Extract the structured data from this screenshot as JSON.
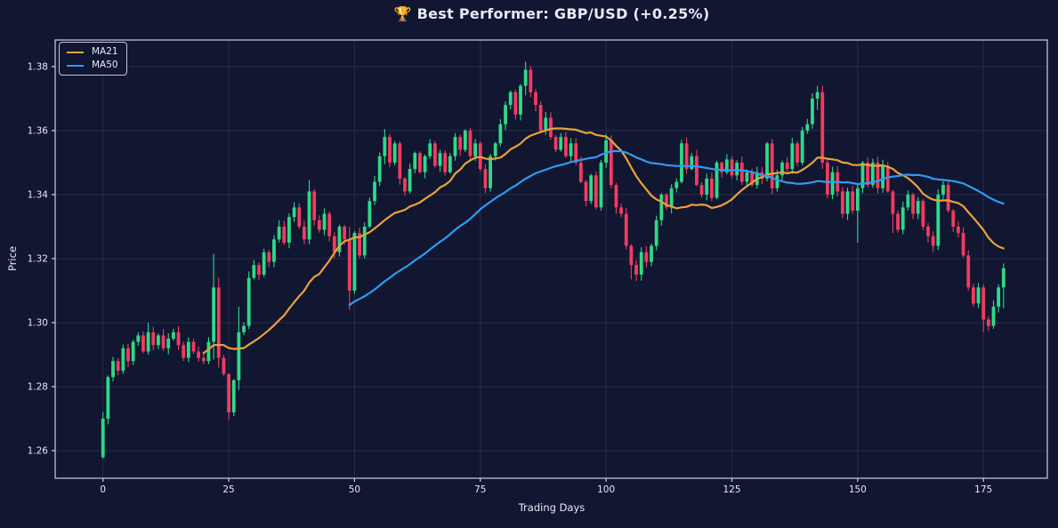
{
  "header": {
    "title": "🏆 Best Performer: GBP/USD (+0.25%)"
  },
  "legend": {
    "position": "upper left",
    "items": [
      {
        "label": "MA21",
        "color": "#e9a23b"
      },
      {
        "label": "MA50",
        "color": "#2f9bf2"
      }
    ]
  },
  "colors": {
    "background": "#111631",
    "grid": "rgba(173,181,224,0.14)",
    "spine": "#cdd1e4",
    "text": "#e8eaf6",
    "up": "#2fd987",
    "down": "#f23b5f",
    "ma21": "#e9a23b",
    "ma50": "#2f9bf2"
  },
  "chart_data": {
    "type": "candlestick",
    "title": "🏆 Best Performer: GBP/USD (+0.25%)",
    "xlabel": "Trading Days",
    "ylabel": "Price",
    "x_ticks": [
      0,
      25,
      50,
      75,
      100,
      125,
      150,
      175
    ],
    "y_ticks": [
      1.26,
      1.28,
      1.3,
      1.32,
      1.34,
      1.36,
      1.38
    ],
    "xlim": [
      -9.5,
      187.7
    ],
    "ylim": [
      1.2514,
      1.3883
    ],
    "grid": true,
    "legend_position": "upper left",
    "n_days": 180,
    "open_first": 1.258,
    "close": [
      1.27,
      1.283,
      1.288,
      1.285,
      1.292,
      1.288,
      1.294,
      1.296,
      1.291,
      1.297,
      1.293,
      1.296,
      1.292,
      1.295,
      1.297,
      1.293,
      1.289,
      1.294,
      1.291,
      1.289,
      1.288,
      1.294,
      1.311,
      1.289,
      1.284,
      1.272,
      1.282,
      1.297,
      1.299,
      1.314,
      1.318,
      1.315,
      1.322,
      1.319,
      1.326,
      1.33,
      1.325,
      1.333,
      1.336,
      1.33,
      1.326,
      1.341,
      1.332,
      1.329,
      1.334,
      1.327,
      1.322,
      1.33,
      1.326,
      1.31,
      1.328,
      1.321,
      1.33,
      1.338,
      1.344,
      1.352,
      1.358,
      1.35,
      1.356,
      1.345,
      1.341,
      1.348,
      1.353,
      1.347,
      1.352,
      1.356,
      1.349,
      1.353,
      1.347,
      1.352,
      1.358,
      1.354,
      1.36,
      1.352,
      1.356,
      1.348,
      1.342,
      1.352,
      1.356,
      1.362,
      1.368,
      1.372,
      1.365,
      1.374,
      1.379,
      1.372,
      1.368,
      1.36,
      1.364,
      1.358,
      1.354,
      1.358,
      1.352,
      1.356,
      1.35,
      1.344,
      1.338,
      1.346,
      1.336,
      1.35,
      1.357,
      1.343,
      1.336,
      1.334,
      1.324,
      1.318,
      1.315,
      1.322,
      1.319,
      1.324,
      1.332,
      1.34,
      1.336,
      1.342,
      1.344,
      1.356,
      1.348,
      1.352,
      1.343,
      1.34,
      1.345,
      1.339,
      1.35,
      1.347,
      1.351,
      1.346,
      1.35,
      1.344,
      1.347,
      1.343,
      1.347,
      1.345,
      1.356,
      1.342,
      1.346,
      1.35,
      1.348,
      1.356,
      1.35,
      1.36,
      1.362,
      1.37,
      1.372,
      1.35,
      1.34,
      1.347,
      1.341,
      1.334,
      1.341,
      1.335,
      1.342,
      1.35,
      1.343,
      1.35,
      1.342,
      1.349,
      1.341,
      1.334,
      1.329,
      1.336,
      1.34,
      1.334,
      1.338,
      1.33,
      1.327,
      1.324,
      1.34,
      1.343,
      1.335,
      1.33,
      1.328,
      1.321,
      1.311,
      1.306,
      1.311,
      1.301,
      1.299,
      1.305,
      1.311,
      1.317
    ],
    "high_low_overrides": {
      "0": [
        1.272,
        1.2575
      ],
      "9": [
        1.3,
        1.29
      ],
      "22": [
        1.3215,
        1.2885
      ],
      "23": [
        1.314,
        1.286
      ],
      "25": [
        1.284,
        1.2695
      ],
      "27": [
        1.305,
        1.279
      ],
      "41": [
        1.3445,
        1.3245
      ],
      "49": [
        1.33,
        1.304
      ],
      "56": [
        1.3605,
        1.3495
      ],
      "84": [
        1.3815,
        1.371
      ],
      "101": [
        1.3585,
        1.342
      ],
      "105": [
        1.3245,
        1.3135
      ],
      "106": [
        1.3195,
        1.313
      ],
      "142": [
        1.374,
        1.3665
      ],
      "143": [
        1.374,
        1.348
      ],
      "150": [
        1.3435,
        1.325
      ],
      "157": [
        1.3415,
        1.328
      ],
      "175": [
        1.312,
        1.297
      ],
      "179": [
        1.3185,
        1.3045
      ]
    },
    "moving_averages": [
      {
        "name": "MA21",
        "window": 21
      },
      {
        "name": "MA50",
        "window": 50
      }
    ]
  }
}
